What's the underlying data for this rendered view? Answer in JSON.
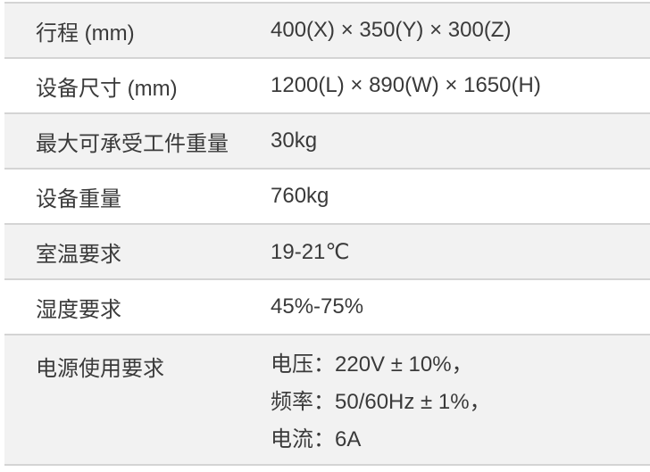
{
  "rows": [
    {
      "label": "行程 (mm)",
      "value": "400(X) × 350(Y) × 300(Z)"
    },
    {
      "label": "设备尺寸 (mm)",
      "value": "1200(L) × 890(W) × 1650(H)"
    },
    {
      "label": "最大可承受工件重量",
      "value": "30kg"
    },
    {
      "label": "设备重量",
      "value": "760kg"
    },
    {
      "label": "室温要求",
      "value": "19-21℃"
    },
    {
      "label": "湿度要求",
      "value": "45%-75%"
    }
  ],
  "power": {
    "label": "电源使用要求",
    "lines": [
      "电压：220V ± 10%，",
      "频率：50/60Hz ± 1%，",
      "电流：6A"
    ]
  }
}
